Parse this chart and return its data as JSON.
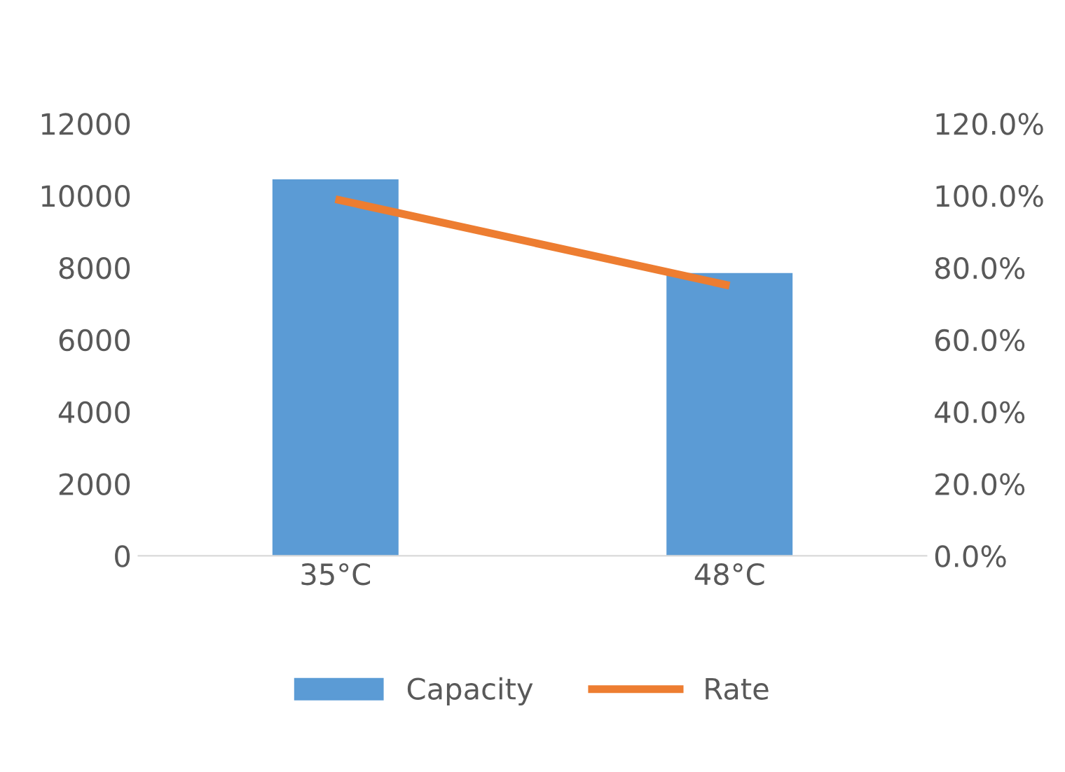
{
  "chart_data": {
    "type": "bar",
    "categories": [
      "35°C",
      "48°C"
    ],
    "series": [
      {
        "name": "Capacity",
        "color": "#5b9bd5",
        "values": [
          10450,
          7850
        ]
      },
      {
        "name": "Rate",
        "type": "line",
        "color": "#ed7d31",
        "axis": "y2",
        "values": [
          0.99,
          0.75
        ]
      }
    ],
    "ylim": [
      0,
      12000
    ],
    "yticks": [
      0,
      2000,
      4000,
      6000,
      8000,
      10000,
      12000
    ],
    "y2lim": [
      0,
      1.2
    ],
    "y2ticks": [
      {
        "value": 0,
        "label": "0.0%"
      },
      {
        "value": 0.2,
        "label": "20.0%"
      },
      {
        "value": 0.4,
        "label": "40.0%"
      },
      {
        "value": 0.6,
        "label": "60.0%"
      },
      {
        "value": 0.8,
        "label": "80.0%"
      },
      {
        "value": 1.0,
        "label": "100.0%"
      },
      {
        "value": 1.2,
        "label": "120.0%"
      }
    ],
    "grid": false,
    "legend": "bottom",
    "marker": "none",
    "line_style": "solid"
  }
}
